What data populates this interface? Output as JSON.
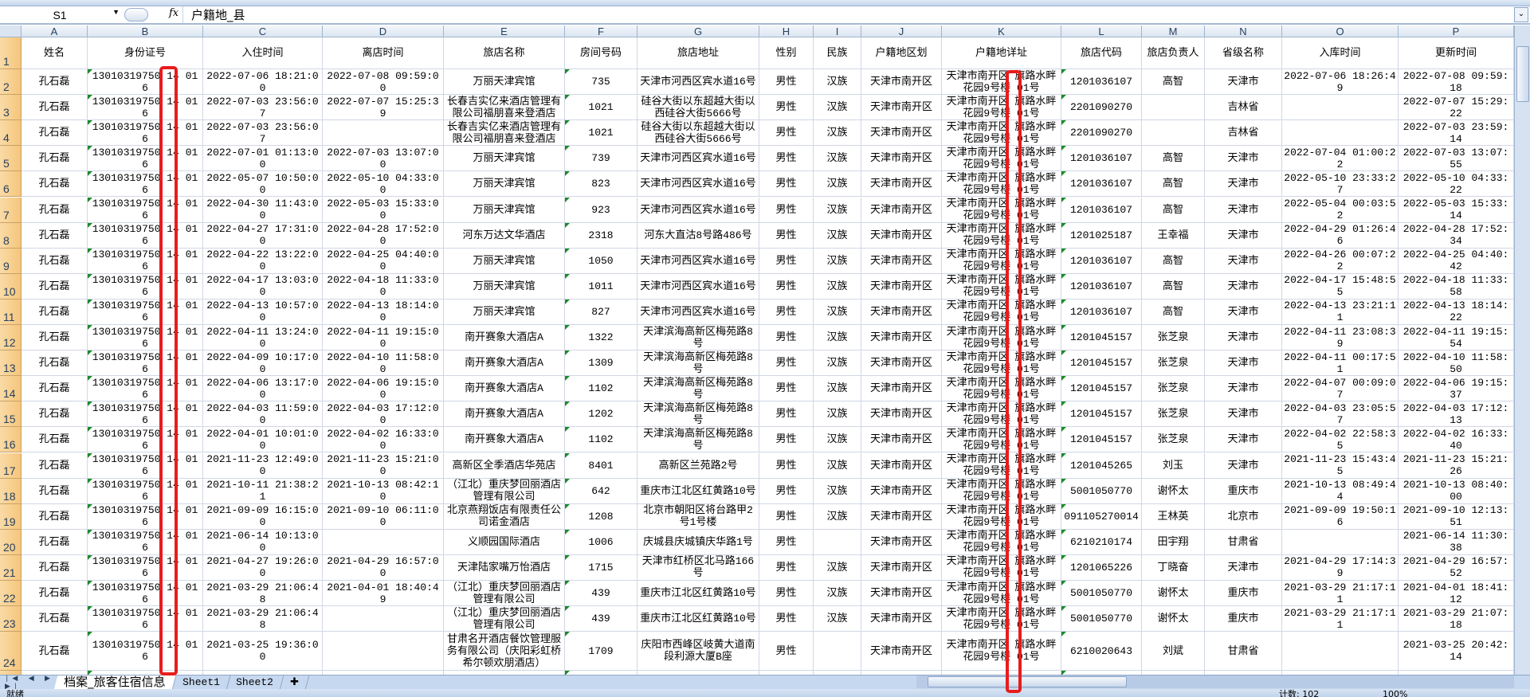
{
  "formula_bar": {
    "name_box": "S1",
    "fx_label": "fx",
    "formula": "户籍地_县"
  },
  "columns": [
    "A",
    "B",
    "C",
    "D",
    "E",
    "F",
    "G",
    "H",
    "I",
    "J",
    "K",
    "L",
    "M",
    "N",
    "O",
    "P"
  ],
  "headers": [
    "姓名",
    "身份证号",
    "入住时间",
    "离店时间",
    "旅店名称",
    "房间号码",
    "旅店地址",
    "性别",
    "民族",
    "户籍地区划",
    "户籍地详址",
    "旅店代码",
    "旅店负责人",
    "省级名称",
    "入库时间",
    "更新时间"
  ],
  "rows": [
    [
      "孔石磊",
      "13010319750 14 016",
      "2022-07-06 18:21:00",
      "2022-07-08 09:59:00",
      "万丽天津宾馆",
      "735",
      "天津市河西区宾水道16号",
      "男性",
      "汉族",
      "天津市南开区",
      "天津市南开区 旗路水畔花园9号楼 01号",
      "1201036107",
      "高智",
      "天津市",
      "2022-07-06 18:26:49",
      "2022-07-08 09:59:18"
    ],
    [
      "孔石磊",
      "13010319750 14 016",
      "2022-07-03 23:56:07",
      "2022-07-07 15:25:39",
      "长春吉实亿来酒店管理有限公司福朋喜来登酒店",
      "1021",
      "硅谷大街以东超越大街以西硅谷大街5666号",
      "男性",
      "汉族",
      "天津市南开区",
      "天津市南开区 旗路水畔花园9号楼 01号",
      "2201090270",
      "",
      "吉林省",
      "",
      "2022-07-07 15:29:22"
    ],
    [
      "孔石磊",
      "13010319750 14 016",
      "2022-07-03 23:56:07",
      "",
      "长春吉实亿来酒店管理有限公司福朋喜来登酒店",
      "1021",
      "硅谷大街以东超越大街以西硅谷大街5666号",
      "男性",
      "汉族",
      "天津市南开区",
      "天津市南开区 旗路水畔花园9号楼 01号",
      "2201090270",
      "",
      "吉林省",
      "",
      "2022-07-03 23:59:14"
    ],
    [
      "孔石磊",
      "13010319750 14 016",
      "2022-07-01 01:13:00",
      "2022-07-03 13:07:00",
      "万丽天津宾馆",
      "739",
      "天津市河西区宾水道16号",
      "男性",
      "汉族",
      "天津市南开区",
      "天津市南开区 旗路水畔花园9号楼 01号",
      "1201036107",
      "高智",
      "天津市",
      "2022-07-04 01:00:22",
      "2022-07-03 13:07:55"
    ],
    [
      "孔石磊",
      "13010319750 14 016",
      "2022-05-07 10:50:00",
      "2022-05-10 04:33:00",
      "万丽天津宾馆",
      "823",
      "天津市河西区宾水道16号",
      "男性",
      "汉族",
      "天津市南开区",
      "天津市南开区 旗路水畔花园9号楼 01号",
      "1201036107",
      "高智",
      "天津市",
      "2022-05-10 23:33:27",
      "2022-05-10 04:33:22"
    ],
    [
      "孔石磊",
      "13010319750 14 016",
      "2022-04-30 11:43:00",
      "2022-05-03 15:33:00",
      "万丽天津宾馆",
      "923",
      "天津市河西区宾水道16号",
      "男性",
      "汉族",
      "天津市南开区",
      "天津市南开区 旗路水畔花园9号楼 01号",
      "1201036107",
      "高智",
      "天津市",
      "2022-05-04 00:03:52",
      "2022-05-03 15:33:14"
    ],
    [
      "孔石磊",
      "13010319750 14 016",
      "2022-04-27 17:31:00",
      "2022-04-28 17:52:00",
      "河东万达文华酒店",
      "2318",
      "河东大直沽8号路486号",
      "男性",
      "汉族",
      "天津市南开区",
      "天津市南开区 旗路水畔花园9号楼 01号",
      "1201025187",
      "王幸福",
      "天津市",
      "2022-04-29 01:26:46",
      "2022-04-28 17:52:34"
    ],
    [
      "孔石磊",
      "13010319750 14 016",
      "2022-04-22 13:22:00",
      "2022-04-25 04:40:00",
      "万丽天津宾馆",
      "1050",
      "天津市河西区宾水道16号",
      "男性",
      "汉族",
      "天津市南开区",
      "天津市南开区 旗路水畔花园9号楼 01号",
      "1201036107",
      "高智",
      "天津市",
      "2022-04-26 00:07:22",
      "2022-04-25 04:40:42"
    ],
    [
      "孔石磊",
      "13010319750 14 016",
      "2022-04-17 13:03:00",
      "2022-04-18 11:33:00",
      "万丽天津宾馆",
      "1011",
      "天津市河西区宾水道16号",
      "男性",
      "汉族",
      "天津市南开区",
      "天津市南开区 旗路水畔花园9号楼 01号",
      "1201036107",
      "高智",
      "天津市",
      "2022-04-17 15:48:55",
      "2022-04-18 11:33:58"
    ],
    [
      "孔石磊",
      "13010319750 14 016",
      "2022-04-13 10:57:00",
      "2022-04-13 18:14:00",
      "万丽天津宾馆",
      "827",
      "天津市河西区宾水道16号",
      "男性",
      "汉族",
      "天津市南开区",
      "天津市南开区 旗路水畔花园9号楼 01号",
      "1201036107",
      "高智",
      "天津市",
      "2022-04-13 23:21:11",
      "2022-04-13 18:14:22"
    ],
    [
      "孔石磊",
      "13010319750 14 016",
      "2022-04-11 13:24:00",
      "2022-04-11 19:15:00",
      "南开赛象大酒店A",
      "1322",
      "天津滨海高新区梅苑路8号",
      "男性",
      "汉族",
      "天津市南开区",
      "天津市南开区 旗路水畔花园9号楼 01号",
      "1201045157",
      "张芝泉",
      "天津市",
      "2022-04-11 23:08:39",
      "2022-04-11 19:15:54"
    ],
    [
      "孔石磊",
      "13010319750 14 016",
      "2022-04-09 10:17:00",
      "2022-04-10 11:58:00",
      "南开赛象大酒店A",
      "1309",
      "天津滨海高新区梅苑路8号",
      "男性",
      "汉族",
      "天津市南开区",
      "天津市南开区 旗路水畔花园9号楼 01号",
      "1201045157",
      "张芝泉",
      "天津市",
      "2022-04-11 00:17:51",
      "2022-04-10 11:58:50"
    ],
    [
      "孔石磊",
      "13010319750 14 016",
      "2022-04-06 13:17:00",
      "2022-04-06 19:15:00",
      "南开赛象大酒店A",
      "1102",
      "天津滨海高新区梅苑路8号",
      "男性",
      "汉族",
      "天津市南开区",
      "天津市南开区 旗路水畔花园9号楼 01号",
      "1201045157",
      "张芝泉",
      "天津市",
      "2022-04-07 00:09:07",
      "2022-04-06 19:15:37"
    ],
    [
      "孔石磊",
      "13010319750 14 016",
      "2022-04-03 11:59:00",
      "2022-04-03 17:12:00",
      "南开赛象大酒店A",
      "1202",
      "天津滨海高新区梅苑路8号",
      "男性",
      "汉族",
      "天津市南开区",
      "天津市南开区 旗路水畔花园9号楼 01号",
      "1201045157",
      "张芝泉",
      "天津市",
      "2022-04-03 23:05:57",
      "2022-04-03 17:12:13"
    ],
    [
      "孔石磊",
      "13010319750 14 016",
      "2022-04-01 10:01:00",
      "2022-04-02 16:33:00",
      "南开赛象大酒店A",
      "1102",
      "天津滨海高新区梅苑路8号",
      "男性",
      "汉族",
      "天津市南开区",
      "天津市南开区 旗路水畔花园9号楼 01号",
      "1201045157",
      "张芝泉",
      "天津市",
      "2022-04-02 22:58:35",
      "2022-04-02 16:33:40"
    ],
    [
      "孔石磊",
      "13010319750 14 016",
      "2021-11-23 12:49:00",
      "2021-11-23 15:21:00",
      "高新区全季酒店华苑店",
      "8401",
      "高新区兰苑路2号",
      "男性",
      "汉族",
      "天津市南开区",
      "天津市南开区 旗路水畔花园9号楼 01号",
      "1201045265",
      "刘玉",
      "天津市",
      "2021-11-23 15:43:45",
      "2021-11-23 15:21:26"
    ],
    [
      "孔石磊",
      "13010319750 14 016",
      "2021-10-11 21:38:21",
      "2021-10-13 08:42:10",
      "（江北）重庆梦回丽酒店管理有限公司",
      "642",
      "重庆市江北区红黄路10号",
      "男性",
      "汉族",
      "天津市南开区",
      "天津市南开区 旗路水畔花园9号楼 01号",
      "5001050770",
      "谢怀太",
      "重庆市",
      "2021-10-13 08:49:44",
      "2021-10-13 08:40:00"
    ],
    [
      "孔石磊",
      "13010319750 14 016",
      "2021-09-09 16:15:00",
      "2021-09-10 06:11:00",
      "北京燕翔饭店有限责任公司诺金酒店",
      "1208",
      "北京市朝阳区将台路甲2号1号楼",
      "男性",
      "汉族",
      "天津市南开区",
      "天津市南开区 旗路水畔花园9号楼 01号",
      "091105270014",
      "王林英",
      "北京市",
      "2021-09-09 19:50:16",
      "2021-09-10 12:13:51"
    ],
    [
      "孔石磊",
      "13010319750 14 016",
      "2021-06-14 10:13:00",
      "",
      "义顺园国际酒店",
      "1006",
      "庆城县庆城镇庆华路1号",
      "男性",
      "",
      "天津市南开区",
      "天津市南开区 旗路水畔花园9号楼 01号",
      "6210210174",
      "田宇翔",
      "甘肃省",
      "",
      "2021-06-14 11:30:38"
    ],
    [
      "孔石磊",
      "13010319750 14 016",
      "2021-04-27 19:26:00",
      "2021-04-29 16:57:00",
      "天津陆家嘴万怡酒店",
      "1715",
      "天津市红桥区北马路166号",
      "男性",
      "汉族",
      "天津市南开区",
      "天津市南开区 旗路水畔花园9号楼 01号",
      "1201065226",
      "丁晓奋",
      "天津市",
      "2021-04-29 17:14:39",
      "2021-04-29 16:57:52"
    ],
    [
      "孔石磊",
      "13010319750 14 016",
      "2021-03-29 21:06:48",
      "2021-04-01 18:40:49",
      "（江北）重庆梦回丽酒店管理有限公司",
      "439",
      "重庆市江北区红黄路10号",
      "男性",
      "汉族",
      "天津市南开区",
      "天津市南开区 旗路水畔花园9号楼 01号",
      "5001050770",
      "谢怀太",
      "重庆市",
      "2021-03-29 21:17:11",
      "2021-04-01 18:41:12"
    ],
    [
      "孔石磊",
      "13010319750 14 016",
      "2021-03-29 21:06:48",
      "",
      "（江北）重庆梦回丽酒店管理有限公司",
      "439",
      "重庆市江北区红黄路10号",
      "男性",
      "汉族",
      "天津市南开区",
      "天津市南开区 旗路水畔花园9号楼 01号",
      "5001050770",
      "谢怀太",
      "重庆市",
      "2021-03-29 21:17:11",
      "2021-03-29 21:07:18"
    ],
    [
      "孔石磊",
      "13010319750 14 016",
      "2021-03-25 19:36:00",
      "",
      "甘肃名开酒店餐饮管理服务有限公司（庆阳彩虹桥希尔顿欢朋酒店）",
      "1709",
      "庆阳市西峰区岐黄大道南段利源大厦B座",
      "男性",
      "",
      "天津市南开区",
      "天津市南开区 旗路水畔花园9号楼 01号",
      "6210020643",
      "刘斌",
      "甘肃省",
      "",
      "2021-03-25 20:42:14"
    ]
  ],
  "sheet_tabs": [
    "档案_旅客住宿信息",
    "Sheet1",
    "Sheet2"
  ],
  "active_tab": "档案_旅客住宿信息",
  "status_bar": {
    "ready": "就绪",
    "count": "计数: 102",
    "zoom": "100%"
  },
  "highlight_color": "#e81c1c"
}
